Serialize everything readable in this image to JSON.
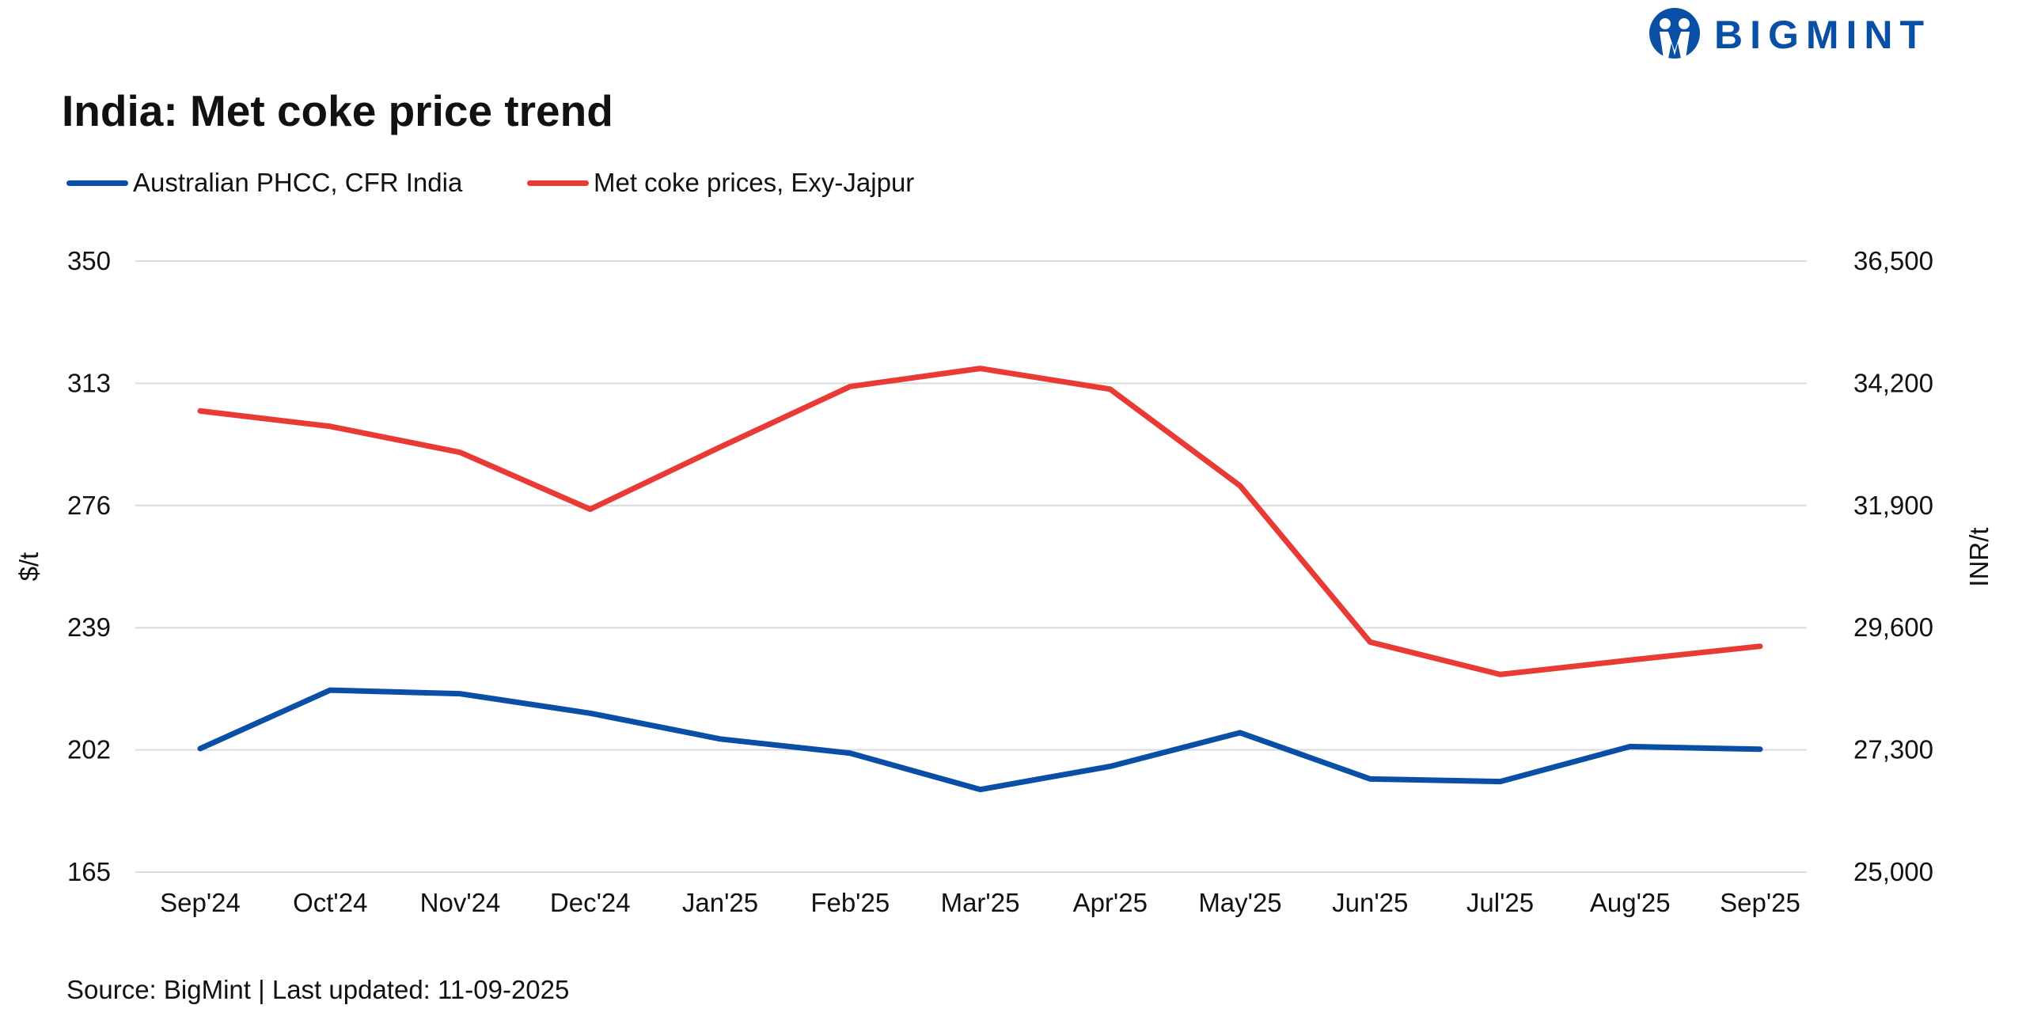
{
  "logo": {
    "text": "BIGMINT",
    "color": "#0a4fa6"
  },
  "footer": {
    "source": "Source: BigMint | Last updated: 11-09-2025"
  },
  "chart_data": {
    "type": "line",
    "title": "India: Met coke price trend",
    "categories": [
      "Sep'24",
      "Oct'24",
      "Nov'24",
      "Dec'24",
      "Jan'25",
      "Feb'25",
      "Mar'25",
      "Apr'25",
      "May'25",
      "Jun'25",
      "Jul'25",
      "Aug'25",
      "Sep'25"
    ],
    "y_left": {
      "label": "$/t",
      "range": [
        165,
        350
      ],
      "ticks": [
        "165",
        "202",
        "239",
        "276",
        "313",
        "350"
      ]
    },
    "y_right": {
      "label": "INR/t",
      "range": [
        25000,
        36500
      ],
      "ticks": [
        "25,000",
        "27,300",
        "29,600",
        "31,900",
        "34,200",
        "36,500"
      ]
    },
    "grid": true,
    "legend_position": "top-left",
    "series": [
      {
        "name": "Australian PHCC, CFR India",
        "axis": "left",
        "color": "#0a4fa6",
        "values": [
          202.4,
          220.1,
          219.0,
          213.1,
          205.3,
          201.0,
          190.0,
          197.0,
          207.2,
          193.2,
          192.4,
          203.0,
          202.2
        ]
      },
      {
        "name": "Met coke prices, Exy-Jajpur",
        "axis": "right",
        "color": "#e93a35",
        "values": [
          33680,
          33390,
          32900,
          31830,
          33000,
          34140,
          34480,
          34090,
          32270,
          29330,
          28720,
          28990,
          29250
        ]
      }
    ]
  }
}
